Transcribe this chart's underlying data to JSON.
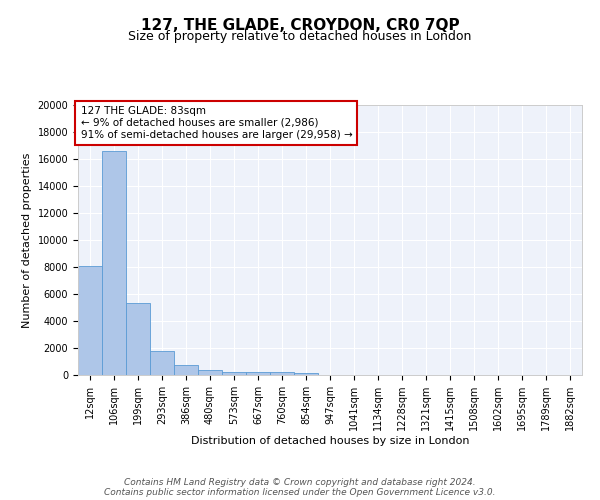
{
  "title": "127, THE GLADE, CROYDON, CR0 7QP",
  "subtitle": "Size of property relative to detached houses in London",
  "xlabel": "Distribution of detached houses by size in London",
  "ylabel": "Number of detached properties",
  "bin_labels": [
    "12sqm",
    "106sqm",
    "199sqm",
    "293sqm",
    "386sqm",
    "480sqm",
    "573sqm",
    "667sqm",
    "760sqm",
    "854sqm",
    "947sqm",
    "1041sqm",
    "1134sqm",
    "1228sqm",
    "1321sqm",
    "1415sqm",
    "1508sqm",
    "1602sqm",
    "1695sqm",
    "1789sqm",
    "1882sqm"
  ],
  "bar_heights": [
    8100,
    16600,
    5300,
    1800,
    750,
    350,
    250,
    200,
    200,
    150,
    0,
    0,
    0,
    0,
    0,
    0,
    0,
    0,
    0,
    0,
    0
  ],
  "bar_color": "#aec6e8",
  "bar_edge_color": "#5b9bd5",
  "bg_color": "#eef2fa",
  "grid_color": "#ffffff",
  "annotation_text": "127 THE GLADE: 83sqm\n← 9% of detached houses are smaller (2,986)\n91% of semi-detached houses are larger (29,958) →",
  "annotation_box_color": "#ffffff",
  "annotation_box_edge": "#cc0000",
  "ylim": [
    0,
    20000
  ],
  "yticks": [
    0,
    2000,
    4000,
    6000,
    8000,
    10000,
    12000,
    14000,
    16000,
    18000,
    20000
  ],
  "footer_text": "Contains HM Land Registry data © Crown copyright and database right 2024.\nContains public sector information licensed under the Open Government Licence v3.0.",
  "title_fontsize": 11,
  "subtitle_fontsize": 9,
  "ylabel_fontsize": 8,
  "xlabel_fontsize": 8,
  "tick_fontsize": 7,
  "annotation_fontsize": 7.5,
  "footer_fontsize": 6.5
}
